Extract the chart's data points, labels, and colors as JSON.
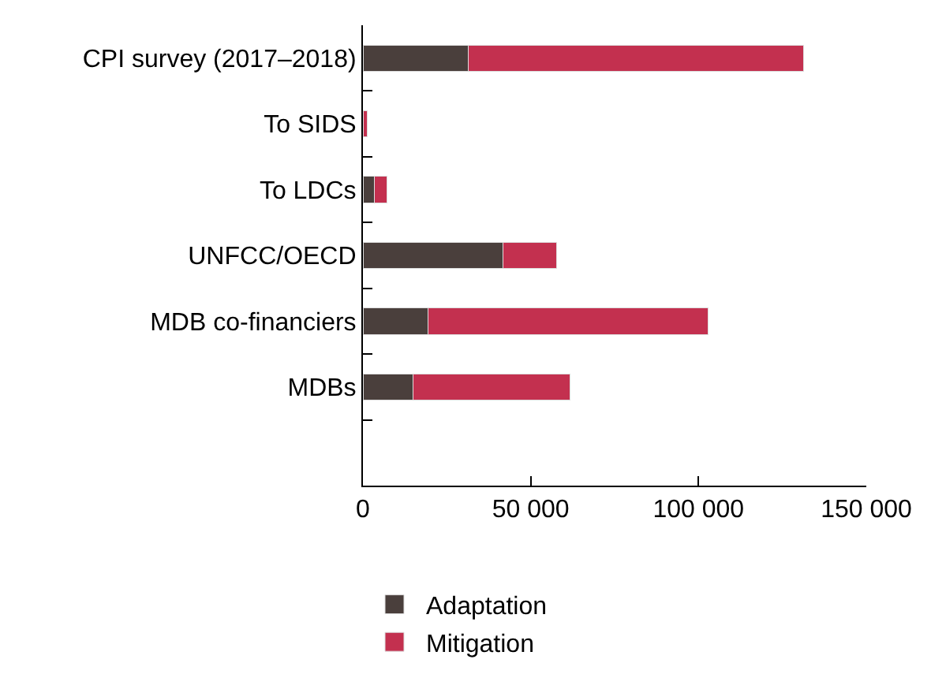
{
  "chart_data": {
    "type": "bar",
    "orientation": "horizontal",
    "stacked": true,
    "categories": [
      "CPI survey (2017–2018)",
      "To SIDS",
      "To LDCs",
      "UNFCC/OECD",
      "MDB co-financiers",
      "MDBs",
      null
    ],
    "series": [
      {
        "name": "Adaptation",
        "color": "#4a3f3c",
        "values": [
          31500,
          0,
          3400,
          41700,
          19500,
          14900,
          null
        ]
      },
      {
        "name": "Mitigation",
        "color": "#c3304f",
        "values": [
          99900,
          1200,
          3800,
          16000,
          83300,
          46800,
          null
        ]
      }
    ],
    "xlim": [
      0,
      150000
    ],
    "xticks": [
      {
        "value": 0,
        "label": "0"
      },
      {
        "value": 50000,
        "label": "50 000"
      },
      {
        "value": 100000,
        "label": "100 000"
      },
      {
        "value": 150000,
        "label": "150 000"
      }
    ],
    "legend": "bottom left"
  }
}
